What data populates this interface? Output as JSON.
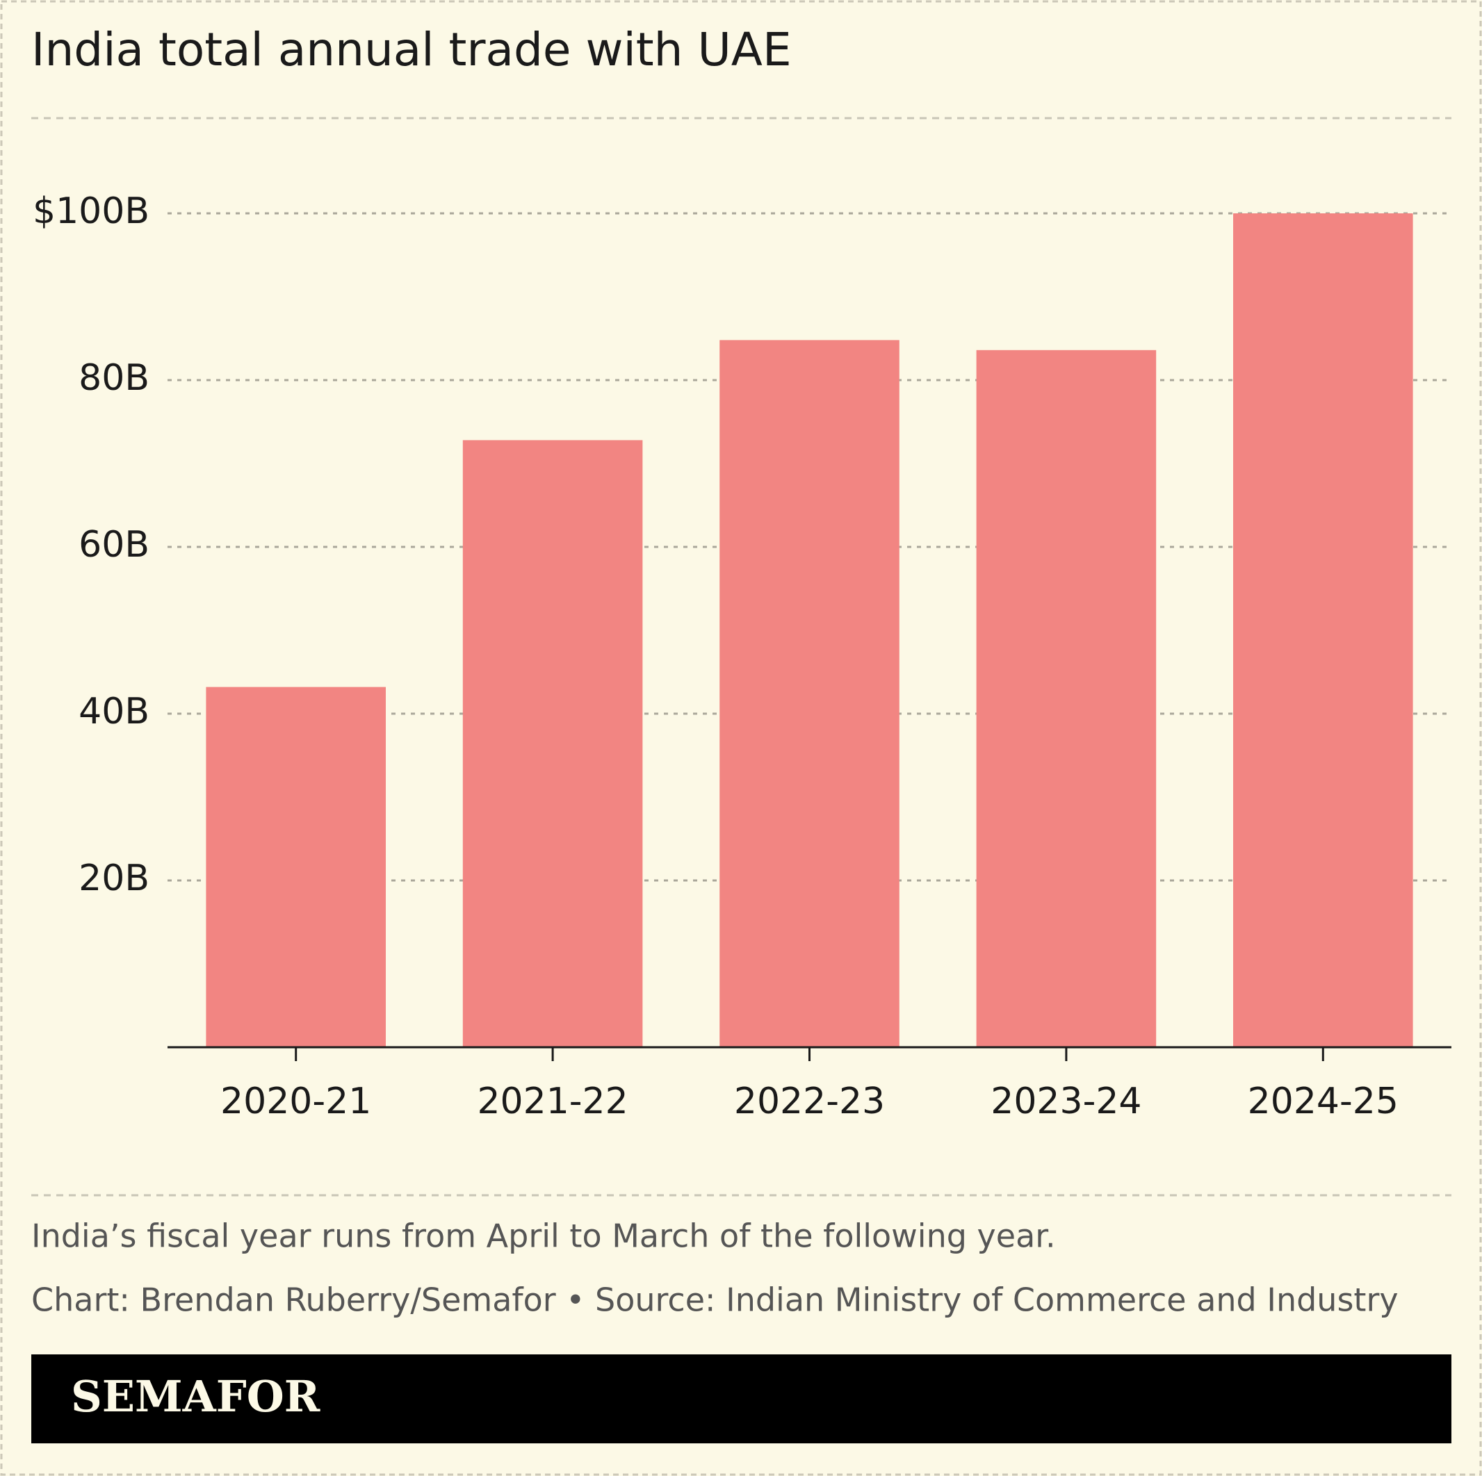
{
  "chart_data": {
    "type": "bar",
    "title": "India total annual trade with UAE",
    "categories": [
      "2020-21",
      "2021-22",
      "2022-23",
      "2023-24",
      "2024-25"
    ],
    "values": [
      43.2,
      72.8,
      84.8,
      83.6,
      100
    ],
    "color": "#f28582",
    "ylim": [
      0,
      100
    ],
    "yticks": [
      {
        "value": 20,
        "label": "20B"
      },
      {
        "value": 40,
        "label": "40B"
      },
      {
        "value": 60,
        "label": "60B"
      },
      {
        "value": 80,
        "label": "80B"
      },
      {
        "value": 100,
        "label": "$100B"
      }
    ],
    "grid": true,
    "note": "India’s fiscal year runs from April to March of the following year.",
    "source": "Chart: Brendan Ruberry/Semafor • Source: Indian Ministry of Commerce and Industry",
    "brand": "SEMAFOR"
  }
}
